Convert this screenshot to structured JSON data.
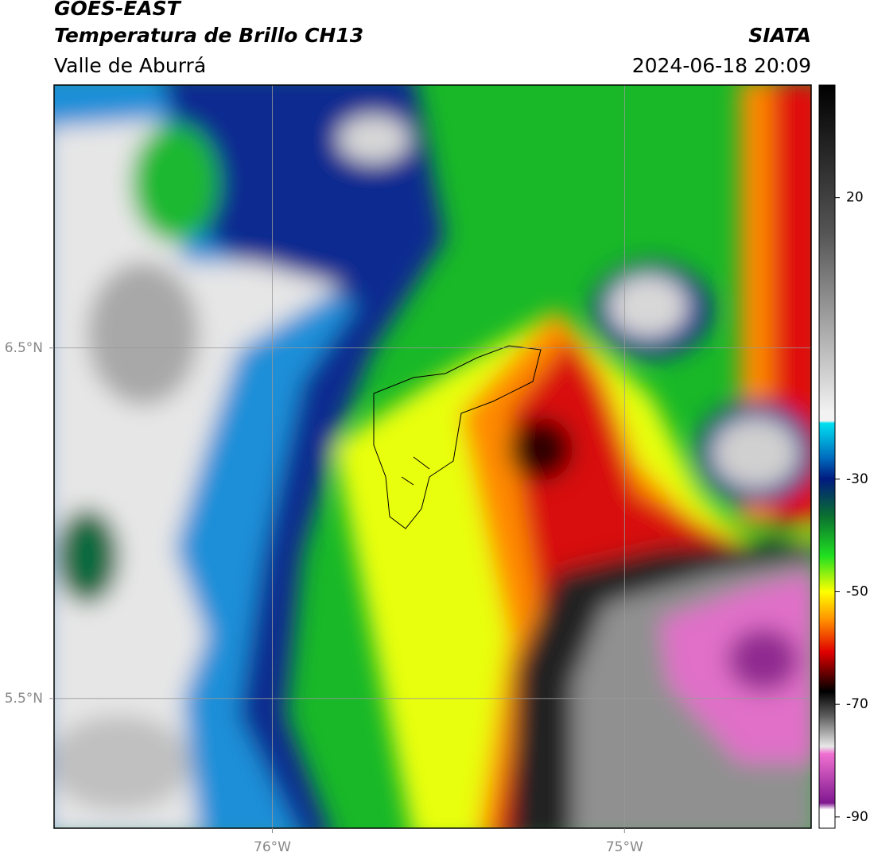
{
  "header": {
    "title": "GOES-EAST",
    "subtitle": "Temperatura de Brillo CH13",
    "region": "Valle de Aburrá",
    "agency": "SIATA",
    "datetime": "2024-06-18 20:09"
  },
  "map": {
    "xlim": [
      -76.62,
      -74.47
    ],
    "ylim": [
      5.13,
      7.25
    ],
    "xticks": [
      {
        "value": -76,
        "label": "76°W"
      },
      {
        "value": -75,
        "label": "75°W"
      }
    ],
    "yticks": [
      {
        "value": 6.5,
        "label": "6.5°N"
      },
      {
        "value": 5.5,
        "label": "5.5°N"
      }
    ]
  },
  "colorbar": {
    "lim": [
      -92,
      40
    ],
    "ticks": [
      20,
      -30,
      -50,
      -70,
      -90
    ]
  }
}
